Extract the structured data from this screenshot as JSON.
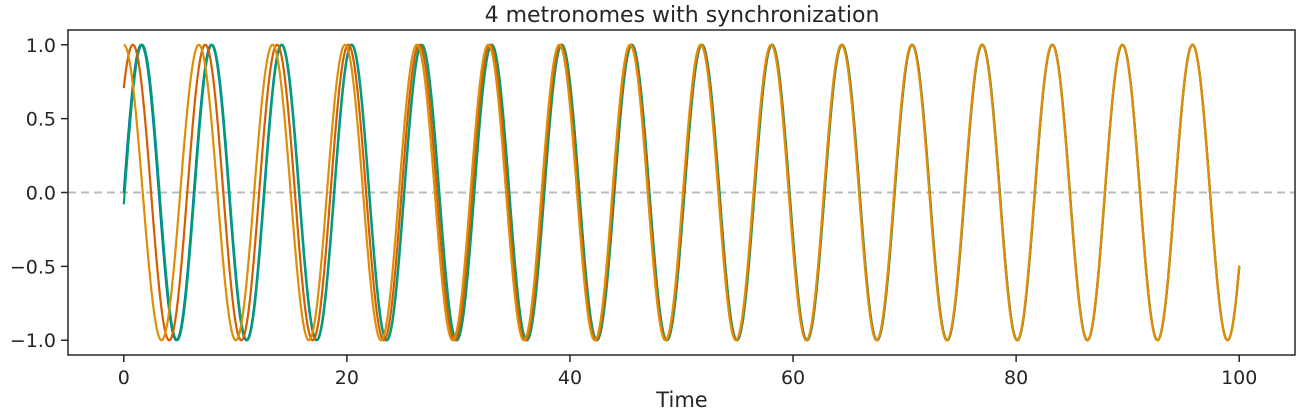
{
  "chart_data": {
    "type": "line",
    "title": "4 metronomes with synchronization",
    "xlabel": "Time",
    "ylabel": "",
    "xlim": [
      -5,
      105
    ],
    "ylim": [
      -1.1,
      1.1
    ],
    "xticks": [
      0,
      20,
      40,
      60,
      80,
      100
    ],
    "yticks": [
      1.0,
      0.5,
      0.0,
      -0.5,
      -1.0
    ],
    "xtick_labels": [
      "0",
      "20",
      "40",
      "60",
      "80",
      "100"
    ],
    "ytick_labels": [
      "1.0",
      "0.5",
      "0.0",
      "−0.5",
      "−1.0"
    ],
    "grid": false,
    "reference_line": {
      "y": 0,
      "style": "dashed",
      "color": "#bbbbbb"
    },
    "period": 6.283,
    "sync_time_constant": 20,
    "series": [
      {
        "color": "#0173b2",
        "initial_phase": 0.0
      },
      {
        "color": "#029e73",
        "initial_phase": -0.08
      },
      {
        "color": "#d55e00",
        "initial_phase": 0.785
      },
      {
        "color": "#de8f05",
        "initial_phase": 1.5708
      }
    ]
  }
}
